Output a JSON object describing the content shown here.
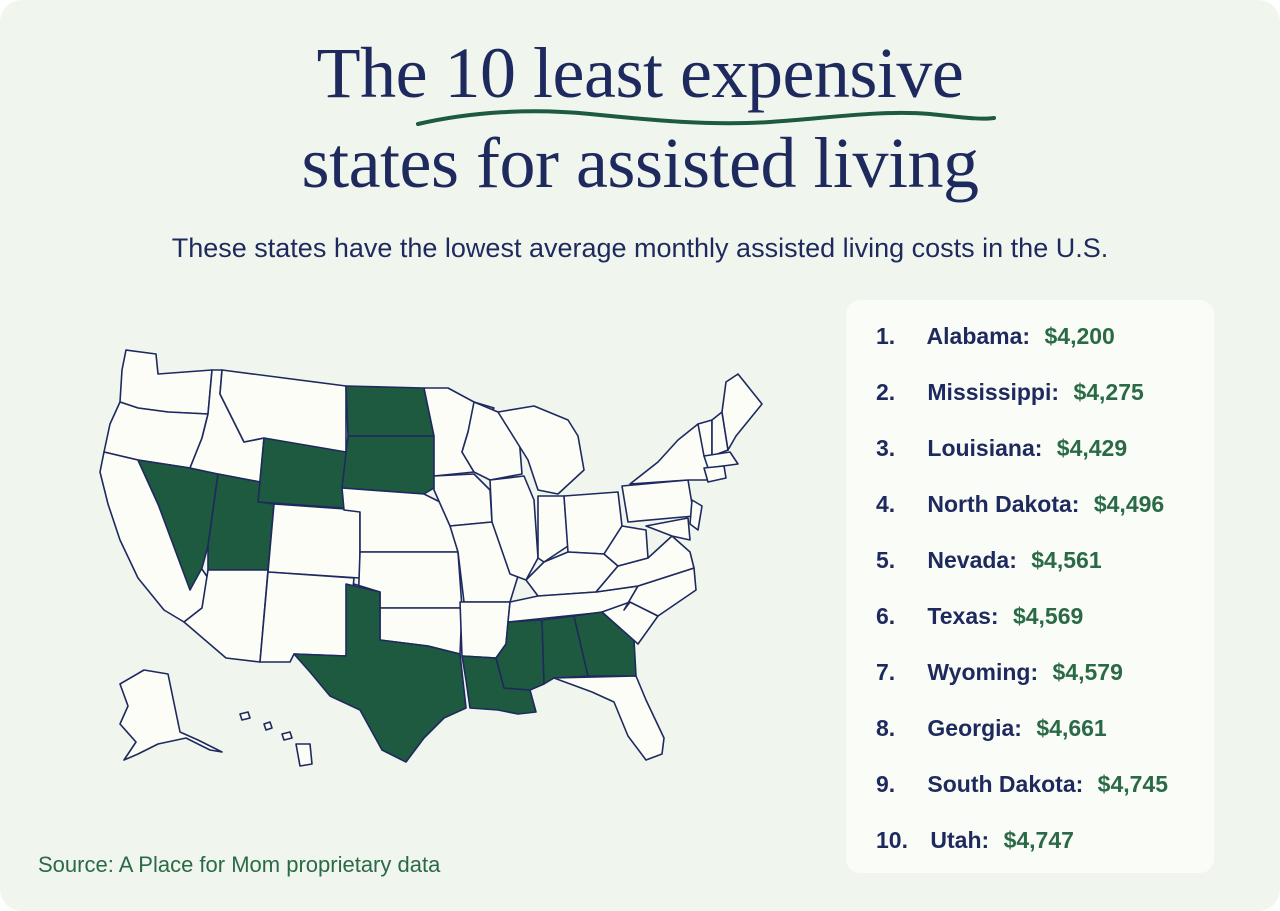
{
  "header": {
    "title_line1": "The 10 least expensive",
    "title_line2": "states for assisted living",
    "subtitle": "These states have the lowest average monthly assisted living costs in the U.S."
  },
  "colors": {
    "background": "#f0f6ee",
    "title": "#1e2a5e",
    "highlight_state": "#1e5a3f",
    "cost_text": "#2a6a46",
    "panel": "#fafcf7"
  },
  "map": {
    "highlighted_states": [
      "Alabama",
      "Mississippi",
      "Louisiana",
      "North Dakota",
      "Nevada",
      "Texas",
      "Wyoming",
      "Georgia",
      "South Dakota",
      "Utah"
    ]
  },
  "ranking": [
    {
      "rank": "1.",
      "state": "Alabama:",
      "cost": "$4,200"
    },
    {
      "rank": "2.",
      "state": "Mississippi:",
      "cost": "$4,275"
    },
    {
      "rank": "3.",
      "state": "Louisiana:",
      "cost": "$4,429"
    },
    {
      "rank": "4.",
      "state": "North Dakota:",
      "cost": "$4,496"
    },
    {
      "rank": "5.",
      "state": "Nevada:",
      "cost": "$4,561"
    },
    {
      "rank": "6.",
      "state": "Texas:",
      "cost": "$4,569"
    },
    {
      "rank": "7.",
      "state": "Wyoming:",
      "cost": "$4,579"
    },
    {
      "rank": "8.",
      "state": "Georgia:",
      "cost": "$4,661"
    },
    {
      "rank": "9.",
      "state": "South Dakota:",
      "cost": "$4,745"
    },
    {
      "rank": "10.",
      "state": "Utah:",
      "cost": "$4,747"
    }
  ],
  "footer": {
    "source": "Source: A Place for Mom proprietary data"
  }
}
